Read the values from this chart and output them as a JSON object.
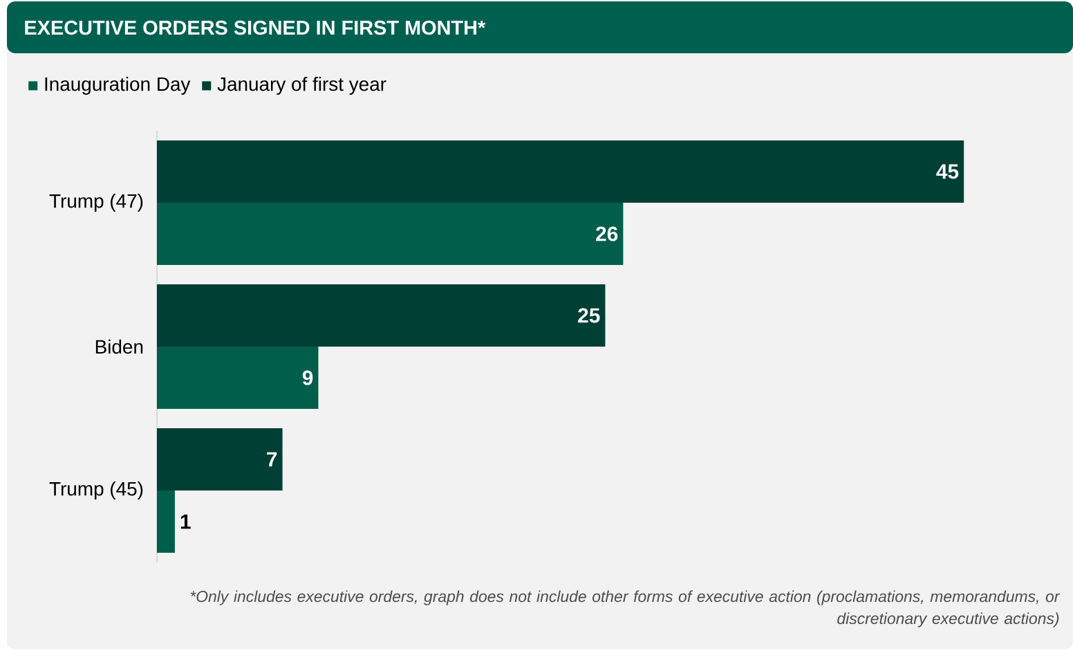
{
  "chart_data": {
    "type": "bar",
    "orientation": "horizontal",
    "title": "EXECUTIVE ORDERS SIGNED IN FIRST MONTH*",
    "categories": [
      "Trump (47)",
      "Biden",
      "Trump (45)"
    ],
    "series": [
      {
        "name": "Inauguration Day",
        "color": "#005e4b",
        "values": [
          26,
          9,
          1
        ]
      },
      {
        "name": "January of first year",
        "color": "#003f34",
        "values": [
          45,
          25,
          7
        ]
      }
    ],
    "data_labels": true,
    "legend": "top left",
    "annotations": [
      "*Only includes executive orders, graph does not include other forms of executive action (proclamations, memorandums, or discretionary executive actions)"
    ]
  }
}
